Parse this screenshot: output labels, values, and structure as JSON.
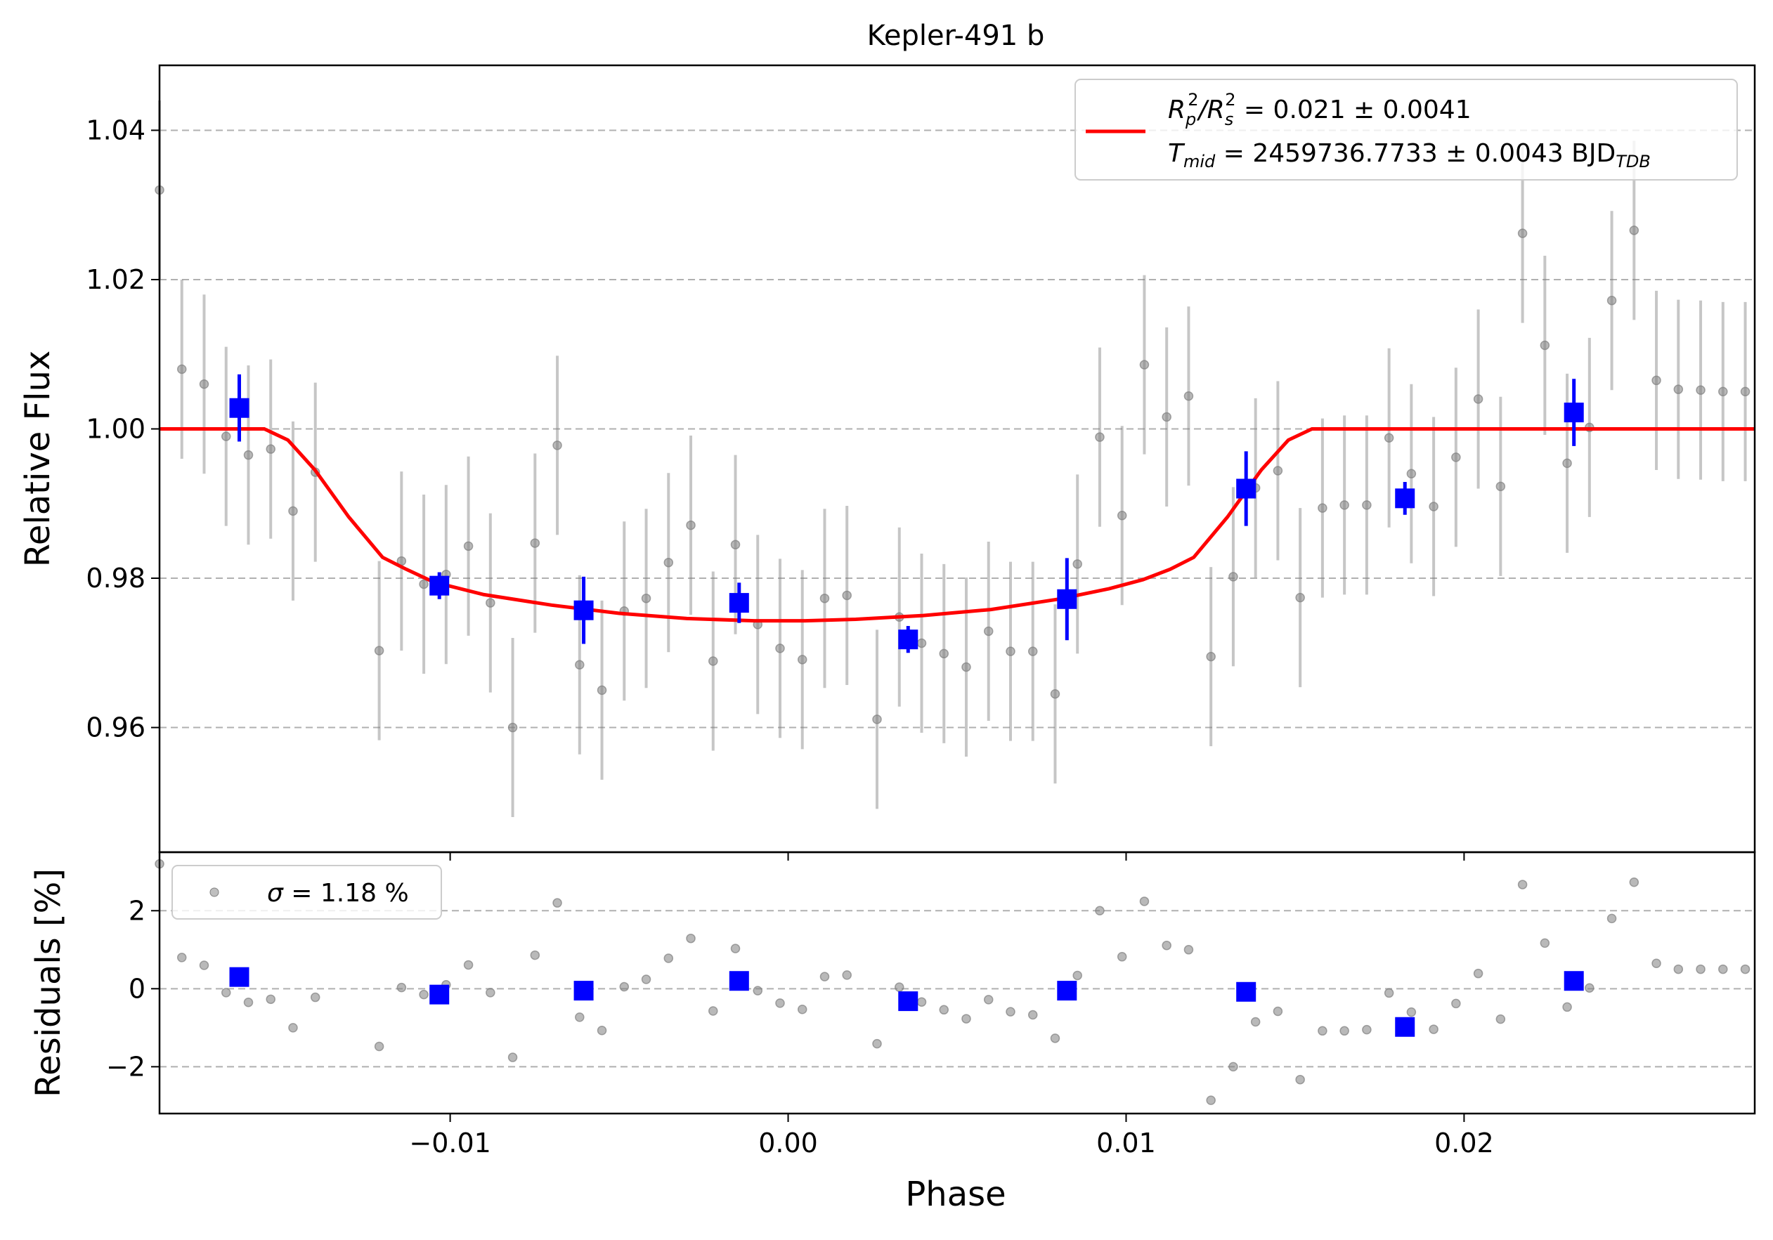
{
  "chart_data": [
    {
      "panel": "main",
      "type": "scatter",
      "title": "Kepler-491 b",
      "xlabel": "",
      "ylabel": "Relative Flux",
      "xlim": [
        -0.0186,
        0.0286
      ],
      "ylim": [
        0.9433,
        1.0487
      ],
      "xticks": [
        -0.01,
        0.0,
        0.01,
        0.02
      ],
      "yticks": [
        0.96,
        0.98,
        1.0,
        1.02,
        1.04
      ],
      "ytick_labels": [
        "0.96",
        "0.98",
        "1.00",
        "1.02",
        "1.04"
      ],
      "grid": "horizontal dashed",
      "legend_placement": "top-right",
      "legend": {
        "line1": {
          "pre": "R",
          "sub1": "p",
          "sup1": "2",
          "mid": "/R",
          "sub2": "s",
          "sup2": "2",
          "post": " = 0.021 ± 0.0041"
        },
        "line2": {
          "pre": "T",
          "sub1": "mid",
          "post": " = 2459736.7733 ± 0.0043 BJD",
          "sub2": "TDB"
        }
      },
      "series": [
        {
          "kind": "data",
          "color": "#808080",
          "err": 0.012,
          "x": [
            -0.0186,
            -0.01794,
            -0.01728,
            -0.01663,
            -0.01597,
            -0.01531,
            -0.01465,
            -0.01399,
            -0.0121,
            -0.01144,
            -0.01078,
            -0.01012,
            -0.00946,
            -0.00881,
            -0.00815,
            -0.00749,
            -0.00683,
            -0.00617,
            -0.00551,
            -0.00485,
            -0.0042,
            -0.00354,
            -0.00288,
            -0.00222,
            -0.00156,
            -0.0009,
            -0.00024,
            0.00042,
            0.00108,
            0.00174,
            0.00263,
            0.00329,
            0.00395,
            0.00461,
            0.00527,
            0.00593,
            0.00658,
            0.00724,
            0.0079,
            0.00856,
            0.00922,
            0.00988,
            0.01054,
            0.0112,
            0.01185,
            0.01251,
            0.01317,
            0.01383,
            0.01449,
            0.01515,
            0.01581,
            0.01646,
            0.01712,
            0.01778,
            0.01844,
            0.0191,
            0.01976,
            0.02042,
            0.02108,
            0.02173,
            0.02239,
            0.02305,
            0.02371,
            0.02437,
            0.02503,
            0.02569,
            0.02634,
            0.027,
            0.02766,
            0.02832
          ],
          "y": [
            1.032,
            1.008,
            1.006,
            0.999,
            0.9965,
            0.9973,
            0.989,
            0.9942,
            0.9703,
            0.9823,
            0.9792,
            0.9805,
            0.9843,
            0.9767,
            0.96,
            0.9847,
            0.9978,
            0.9684,
            0.965,
            0.9756,
            0.9773,
            0.9821,
            0.9871,
            0.9689,
            0.9845,
            0.9738,
            0.9706,
            0.9691,
            0.9773,
            0.9777,
            0.9611,
            0.9748,
            0.9713,
            0.9699,
            0.9681,
            0.9729,
            0.9702,
            0.9702,
            0.9645,
            0.9819,
            0.9989,
            0.9884,
            1.0086,
            1.0016,
            1.0044,
            0.9695,
            0.9802,
            0.9921,
            0.9944,
            0.9774,
            0.9894,
            0.9898,
            0.9898,
            0.9988,
            0.994,
            0.9896,
            0.9962,
            1.004,
            0.9923,
            1.0262,
            1.0112,
            0.9954,
            1.0002,
            1.0172,
            1.0266,
            1.0065,
            1.0053,
            1.0052,
            1.005,
            1.005
          ]
        },
        {
          "kind": "binned",
          "color": "#0000ff",
          "x": [
            -0.01624,
            -0.01032,
            -0.00605,
            -0.00145,
            0.00355,
            0.00825,
            0.01355,
            0.01825,
            0.02325
          ],
          "y": [
            1.0028,
            0.979,
            0.9757,
            0.9767,
            0.9718,
            0.9772,
            0.992,
            0.9907,
            1.0022
          ],
          "err": [
            0.0045,
            0.0018,
            0.0045,
            0.0027,
            0.0018,
            0.0055,
            0.005,
            0.0022,
            0.0045
          ]
        },
        {
          "kind": "model",
          "color": "#ff0000",
          "x": [
            -0.0186,
            -0.0155,
            -0.0148,
            -0.014,
            -0.013,
            -0.012,
            -0.0113,
            -0.0105,
            -0.009,
            -0.007,
            -0.005,
            -0.003,
            -0.001,
            0.0005,
            0.002,
            0.004,
            0.006,
            0.008,
            0.0095,
            0.0105,
            0.0113,
            0.012,
            0.013,
            0.014,
            0.0148,
            0.0155,
            0.0286
          ],
          "y": [
            1.0,
            1.0,
            0.9985,
            0.9945,
            0.9882,
            0.9828,
            0.9812,
            0.9795,
            0.9778,
            0.9764,
            0.9753,
            0.9746,
            0.9743,
            0.9743,
            0.9745,
            0.975,
            0.9758,
            0.9772,
            0.9786,
            0.9798,
            0.9812,
            0.9828,
            0.9882,
            0.9945,
            0.9985,
            1.0,
            1.0
          ]
        }
      ]
    },
    {
      "panel": "residuals",
      "type": "scatter",
      "xlabel": "Phase",
      "ylabel": "Residuals [%]",
      "xlim": [
        -0.0186,
        0.0286
      ],
      "ylim": [
        -3.2,
        3.5
      ],
      "xticks": [
        -0.01,
        0.0,
        0.01,
        0.02
      ],
      "xtick_labels": [
        "−0.01",
        "0.00",
        "0.01",
        "0.02"
      ],
      "yticks": [
        -2,
        0,
        2
      ],
      "ytick_labels": [
        "−2",
        "0",
        "2"
      ],
      "grid": "horizontal dashed",
      "legend_placement": "top-left",
      "legend": {
        "symbol": "σ",
        "text": " = 1.18 %"
      },
      "series": [
        {
          "kind": "data",
          "color": "#808080",
          "y": [
            3.2,
            0.8,
            0.6,
            -0.1,
            -0.35,
            -0.27,
            -1.0,
            -0.22,
            -1.48,
            0.03,
            -0.15,
            0.1,
            0.61,
            -0.1,
            -1.76,
            0.86,
            2.2,
            -0.73,
            -1.07,
            0.05,
            0.24,
            0.78,
            1.29,
            -0.57,
            1.03,
            -0.05,
            -0.37,
            -0.53,
            0.31,
            0.35,
            -1.41,
            0.04,
            -0.34,
            -0.54,
            -0.77,
            -0.28,
            -0.59,
            -0.67,
            -1.27,
            0.34,
            2.0,
            0.82,
            2.24,
            1.11,
            1.0,
            -2.86,
            -2.0,
            -0.85,
            -0.58,
            -2.33,
            -1.08,
            -1.08,
            -1.05,
            -0.11,
            -0.6,
            -1.04,
            -0.38,
            0.39,
            -0.78,
            2.67,
            1.17,
            -0.47,
            0.02,
            1.8,
            2.73,
            0.65,
            0.5,
            0.5,
            0.5,
            0.5
          ]
        },
        {
          "kind": "binned",
          "color": "#0000ff",
          "y": [
            0.3,
            -0.15,
            -0.05,
            0.2,
            -0.32,
            -0.05,
            -0.08,
            -0.98,
            0.2
          ]
        }
      ]
    }
  ]
}
